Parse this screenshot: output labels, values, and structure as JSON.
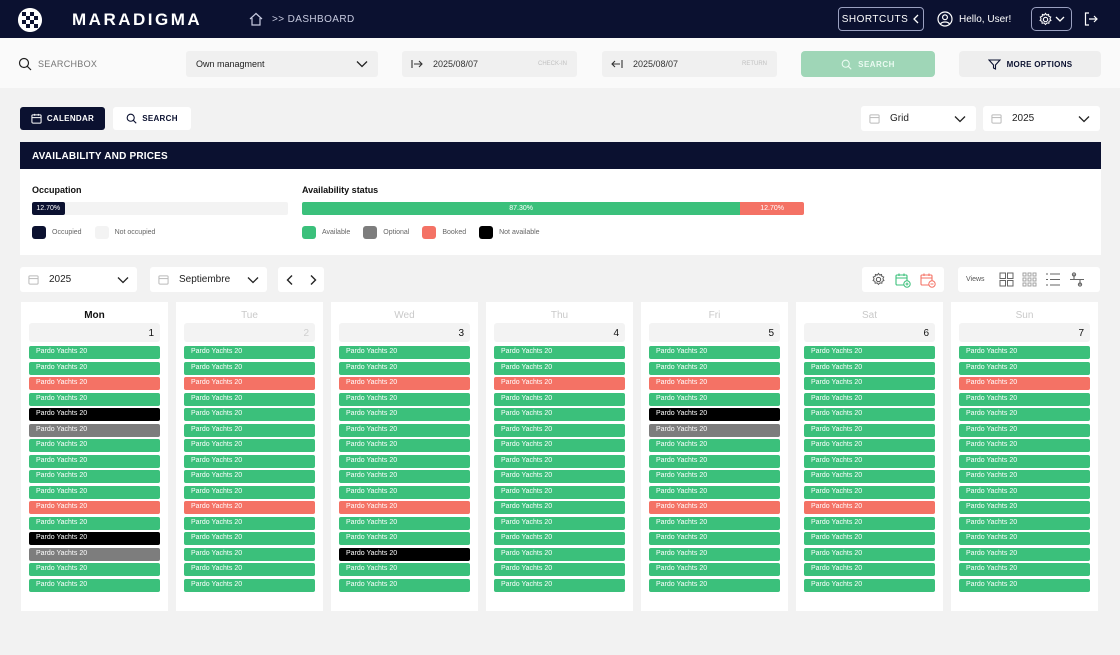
{
  "colors": {
    "navy": "#0b1130",
    "available": "#3bc07b",
    "booked": "#f47265",
    "optional": "#7d7d7d",
    "not_available": "#000000"
  },
  "header": {
    "brand": "MARADIGMA",
    "breadcrumb": ">> DASHBOARD",
    "shortcuts_label": "SHORTCUTS",
    "greeting": "Hello, User!"
  },
  "filters": {
    "search_placeholder": "SEARCHBOX",
    "management_select": "Own managment",
    "checkin_date": "2025/08/07",
    "checkin_hint": "CHECK-IN",
    "checkout_date": "2025/08/07",
    "checkout_hint": "RETURN",
    "search_label": "SEARCH",
    "more_options_label": "MORE OPTIONS"
  },
  "view": {
    "calendar_tab": "CALENDAR",
    "search_tab": "SEARCH",
    "layout_select": "Grid",
    "year_select": "2025"
  },
  "availability": {
    "title": "AVAILABILITY AND PRICES",
    "occupation_label": "Occupation",
    "occupation_value": "12.70%",
    "occupation_fraction": 0.127,
    "status_label": "Availability status",
    "available_value": "87.30%",
    "available_fraction": 0.873,
    "booked_value": "12.70%",
    "booked_fraction": 0.127,
    "legend_occupied": "Occupied",
    "legend_not_occupied": "Not occupied",
    "legend_available": "Available",
    "legend_optional": "Optional",
    "legend_booked": "Booked",
    "legend_not_available": "Not available"
  },
  "calendar": {
    "year": "2025",
    "month": "Septiembre",
    "views_label": "Views",
    "booking_label": "Pardo Yachts 20",
    "days": [
      {
        "name": "Mon",
        "num": "1",
        "active": true,
        "muted": false,
        "status": [
          "available",
          "available",
          "booked",
          "available",
          "na",
          "optional",
          "available",
          "available",
          "available",
          "available",
          "booked",
          "available",
          "na",
          "optional",
          "available",
          "available"
        ]
      },
      {
        "name": "Tue",
        "num": "2",
        "active": false,
        "muted": true,
        "status": [
          "available",
          "available",
          "booked",
          "available",
          "available",
          "available",
          "available",
          "available",
          "available",
          "available",
          "booked",
          "available",
          "available",
          "available",
          "available",
          "available"
        ]
      },
      {
        "name": "Wed",
        "num": "3",
        "active": false,
        "muted": false,
        "status": [
          "available",
          "available",
          "booked",
          "available",
          "available",
          "available",
          "available",
          "available",
          "available",
          "available",
          "booked",
          "available",
          "available",
          "na",
          "available",
          "available"
        ]
      },
      {
        "name": "Thu",
        "num": "4",
        "active": false,
        "muted": false,
        "status": [
          "available",
          "available",
          "booked",
          "available",
          "available",
          "available",
          "available",
          "available",
          "available",
          "available",
          "available",
          "available",
          "available",
          "available",
          "available",
          "available"
        ]
      },
      {
        "name": "Fri",
        "num": "5",
        "active": false,
        "muted": false,
        "status": [
          "available",
          "available",
          "booked",
          "available",
          "na",
          "optional",
          "available",
          "available",
          "available",
          "available",
          "booked",
          "available",
          "available",
          "available",
          "available",
          "available"
        ]
      },
      {
        "name": "Sat",
        "num": "6",
        "active": false,
        "muted": false,
        "status": [
          "available",
          "available",
          "available",
          "available",
          "available",
          "available",
          "available",
          "available",
          "available",
          "available",
          "booked",
          "available",
          "available",
          "available",
          "available",
          "available"
        ]
      },
      {
        "name": "Sun",
        "num": "7",
        "active": false,
        "muted": false,
        "status": [
          "available",
          "available",
          "booked",
          "available",
          "available",
          "available",
          "available",
          "available",
          "available",
          "available",
          "available",
          "available",
          "available",
          "available",
          "available",
          "available"
        ]
      }
    ]
  }
}
